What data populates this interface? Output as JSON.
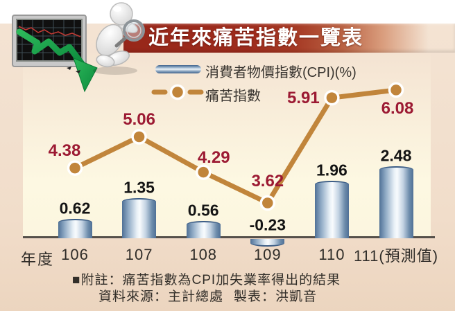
{
  "title": "近年來痛苦指數一覽表",
  "legend": {
    "cpi_label": "消費者物價指數(CPI)(%)",
    "misery_label": "痛苦指數"
  },
  "axis": {
    "x_title": "年度"
  },
  "notes": {
    "note": "■附註：痛苦指數為CPI加失業率得出的結果",
    "source": "資料來源：主計總處",
    "credit": "製表：洪凱音"
  },
  "colors": {
    "banner_red": "#9d2b1c",
    "misery_label_red": "#9c1a33",
    "bar_blue_dark": "#4f7096",
    "bar_blue_light": "#f8fbfd",
    "line_orange": "#c1853b",
    "page_background": "#f2e0cf",
    "panel_cream": "#fdf8e2",
    "axis_gray": "#55504a",
    "arrow_green": "#12a04a"
  },
  "chart_data": {
    "type": "bar+line",
    "categories": [
      "106",
      "107",
      "108",
      "109",
      "110",
      "111(預測值)"
    ],
    "series": [
      {
        "name": "消費者物價指數(CPI)(%)",
        "type": "bar",
        "values": [
          0.62,
          1.35,
          0.56,
          -0.23,
          1.96,
          2.48
        ]
      },
      {
        "name": "痛苦指數",
        "type": "line",
        "values": [
          4.38,
          5.06,
          4.29,
          3.62,
          5.91,
          6.08
        ]
      }
    ],
    "title": "近年來痛苦指數一覽表",
    "xlabel": "年度",
    "value_labels": true,
    "legend_position": "top",
    "grid": false
  }
}
